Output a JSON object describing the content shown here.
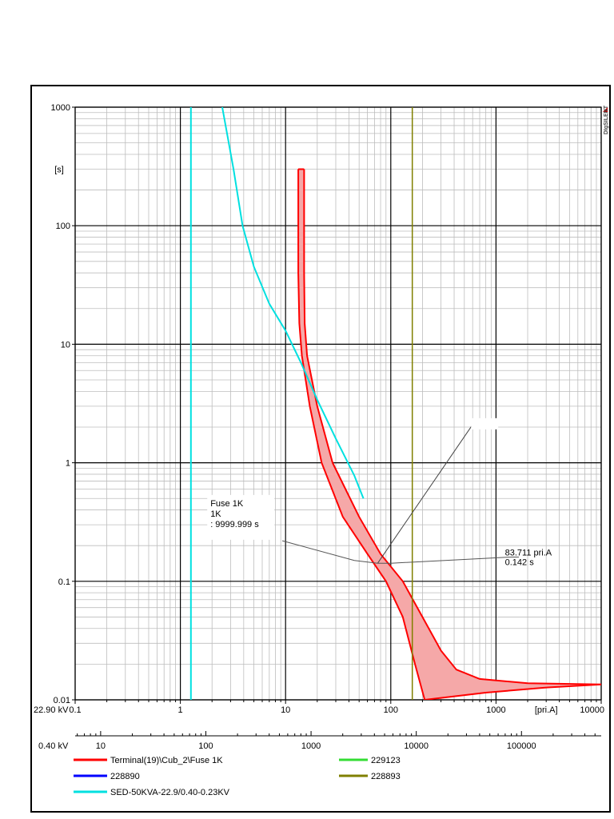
{
  "chart_data": {
    "type": "line",
    "xscale": "log",
    "yscale": "log",
    "xlim": [
      0.1,
      10000
    ],
    "ylim": [
      0.01,
      1000
    ],
    "xunit": "[pri.A]",
    "yunit": "[s]",
    "grid": true,
    "brand": "DIgSILENT",
    "yticks": [
      {
        "v": 1000,
        "label": "1000"
      },
      {
        "v": 100,
        "label": "100"
      },
      {
        "v": 10,
        "label": "10"
      },
      {
        "v": 1,
        "label": "1"
      },
      {
        "v": 0.1,
        "label": "0.1"
      },
      {
        "v": 0.01,
        "label": "0.01"
      }
    ],
    "xticks": [
      {
        "v": 0.1,
        "label": "0.1"
      },
      {
        "v": 1,
        "label": "1"
      },
      {
        "v": 10,
        "label": "10"
      },
      {
        "v": 100,
        "label": "100"
      },
      {
        "v": 1000,
        "label": "1000"
      },
      {
        "v": 10000,
        "label": "10000"
      }
    ],
    "primary_axis_label": "22.90 kV",
    "secondary_axis": {
      "label": "0.40 kV",
      "ratio": 57.25,
      "ticks": [
        {
          "v": 10,
          "label": "10"
        },
        {
          "v": 100,
          "label": "100"
        },
        {
          "v": 1000,
          "label": "1000"
        },
        {
          "v": 10000,
          "label": "10000"
        },
        {
          "v": 100000,
          "label": "100000"
        }
      ]
    },
    "series": [
      {
        "name": "Terminal(19)\\Cub_2\\Fuse 1K",
        "color": "#ff0000",
        "fill": "#f5a8a8",
        "kind": "band",
        "min_curve": [
          [
            13.2,
            300
          ],
          [
            13.2,
            40
          ],
          [
            13.5,
            15
          ],
          [
            14.3,
            8
          ],
          [
            17,
            3
          ],
          [
            22,
            1
          ],
          [
            35,
            0.35
          ],
          [
            60,
            0.17
          ],
          [
            90,
            0.1
          ],
          [
            130,
            0.05
          ],
          [
            170,
            0.02
          ],
          [
            210,
            0.01
          ]
        ],
        "max_curve": [
          [
            15,
            300
          ],
          [
            15,
            40
          ],
          [
            15.2,
            15
          ],
          [
            16,
            8
          ],
          [
            20,
            3
          ],
          [
            28,
            1
          ],
          [
            50,
            0.35
          ],
          [
            80,
            0.17
          ],
          [
            130,
            0.1
          ],
          [
            200,
            0.05
          ],
          [
            300,
            0.026
          ],
          [
            420,
            0.018
          ],
          [
            700,
            0.015
          ],
          [
            2000,
            0.0138
          ],
          [
            10000,
            0.0135
          ]
        ],
        "min_tail": [
          [
            210,
            0.01
          ],
          [
            800,
            0.0115
          ],
          [
            3000,
            0.0127
          ],
          [
            10000,
            0.0135
          ]
        ]
      },
      {
        "name": "228890",
        "color": "#0000ff",
        "kind": "none"
      },
      {
        "name": "SED-50KVA-22.9/0.40-0.23KV",
        "color": "#00e0e0",
        "kind": "line",
        "points": [
          [
            1.26,
            0.01
          ],
          [
            1.26,
            1000
          ]
        ],
        "damage_curve": [
          [
            2.5,
            1000
          ],
          [
            3.2,
            300
          ],
          [
            3.9,
            100
          ],
          [
            5,
            45
          ],
          [
            7,
            22
          ],
          [
            10,
            13
          ],
          [
            14,
            7
          ],
          [
            20,
            3.4
          ],
          [
            30,
            1.6
          ],
          [
            45,
            0.78
          ],
          [
            55,
            0.5
          ]
        ]
      },
      {
        "name": "229123",
        "color": "#33dd33",
        "kind": "none"
      },
      {
        "name": "228893",
        "color": "#808000",
        "kind": "line",
        "points": [
          [
            160,
            0.01
          ],
          [
            160,
            1000
          ]
        ]
      }
    ],
    "annotations": [
      {
        "lines": [
          "Fuse 1K",
          "1K",
          ": 9999.999 s"
        ],
        "anchor": [
          10,
          0.27
        ],
        "leader": [
          [
            9.3,
            0.22
          ],
          [
            45,
            0.15
          ],
          [
            75,
            0.142
          ]
        ]
      },
      {
        "lines": [
          "83.711 pri.A",
          "0.142 s"
        ],
        "anchor": [
          1400,
          0.17
        ],
        "leader": [
          [
            75,
            0.142
          ],
          [
            100,
            0.142
          ],
          [
            1400,
            0.16
          ],
          [
            1650,
            0.16
          ]
        ]
      }
    ],
    "pointer_line": [
      [
        75,
        0.142
      ],
      [
        600,
        2.1
      ]
    ]
  }
}
